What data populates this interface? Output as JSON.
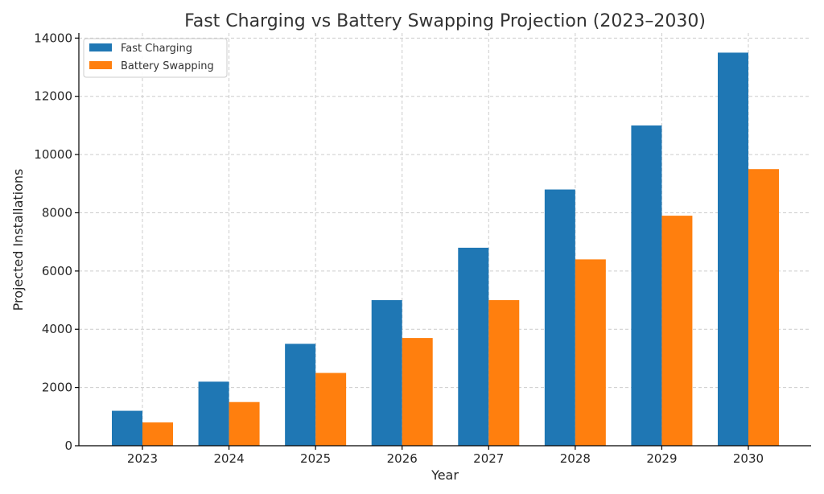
{
  "chart_data": {
    "type": "bar",
    "title": "Fast Charging vs Battery Swapping Projection (2023–2030)",
    "xlabel": "Year",
    "ylabel": "Projected Installations",
    "categories": [
      "2023",
      "2024",
      "2025",
      "2026",
      "2027",
      "2028",
      "2029",
      "2030"
    ],
    "series": [
      {
        "name": "Fast Charging",
        "color": "#1f77b4",
        "values": [
          1200,
          2200,
          3500,
          5000,
          6800,
          8800,
          11000,
          13500
        ]
      },
      {
        "name": "Battery Swapping",
        "color": "#ff7f0e",
        "values": [
          800,
          1500,
          2500,
          3700,
          5000,
          6400,
          7900,
          9500
        ]
      }
    ],
    "ylim": [
      0,
      14175
    ],
    "yticks": [
      0,
      2000,
      4000,
      6000,
      8000,
      10000,
      12000,
      14000
    ],
    "grid": true,
    "legend_position": "top-left"
  }
}
